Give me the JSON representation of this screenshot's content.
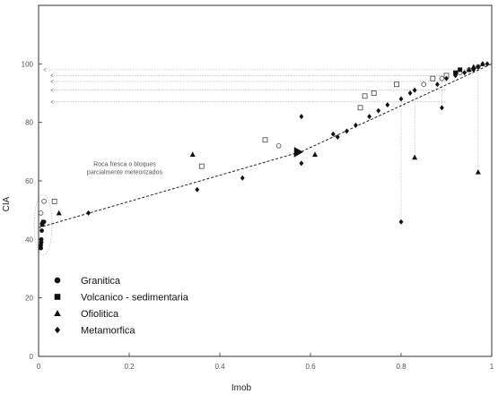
{
  "chart_data": {
    "type": "scatter",
    "title": "",
    "xlabel": "Imob",
    "ylabel": "CIA",
    "xlim": [
      0,
      1
    ],
    "ylim": [
      0,
      120
    ],
    "xticks": [
      0,
      0.2,
      0.4,
      0.6,
      0.8,
      1
    ],
    "xtick_labels": [
      "0",
      "0.2",
      "0.4",
      "0.6",
      "0.8",
      "1"
    ],
    "yticks": [
      0,
      20,
      40,
      60,
      80,
      100
    ],
    "ytick_labels": [
      "0",
      "20",
      "40",
      "60",
      "80",
      "100"
    ],
    "grid": false,
    "legend_position": "bottom-left",
    "annotation": "Roca fresca o bloques parcialmente meteorizados",
    "series": [
      {
        "name": "Granitica",
        "marker": "circle",
        "points": [
          [
            0.005,
            37
          ],
          [
            0.005,
            38
          ],
          [
            0.006,
            39
          ],
          [
            0.006,
            40
          ],
          [
            0.007,
            43
          ],
          [
            0.008,
            45
          ],
          [
            0.012,
            46
          ],
          [
            0.005,
            49
          ],
          [
            0.012,
            53
          ],
          [
            0.53,
            72
          ],
          [
            0.85,
            93
          ],
          [
            0.87,
            95
          ],
          [
            0.89,
            95
          ],
          [
            0.93,
            97
          ],
          [
            0.95,
            98
          ],
          [
            0.97,
            99
          ]
        ]
      },
      {
        "name": "Volcanico - sedimentaria",
        "marker": "square",
        "points": [
          [
            0.035,
            53
          ],
          [
            0.36,
            65
          ],
          [
            0.5,
            74
          ],
          [
            0.71,
            85
          ],
          [
            0.72,
            89
          ],
          [
            0.74,
            90
          ],
          [
            0.79,
            93
          ],
          [
            0.87,
            95
          ],
          [
            0.9,
            96
          ],
          [
            0.92,
            97
          ],
          [
            0.93,
            98
          ]
        ]
      },
      {
        "name": "Ofiolitica",
        "marker": "triangle",
        "points": [
          [
            0.008,
            46
          ],
          [
            0.045,
            49
          ],
          [
            0.34,
            69
          ],
          [
            0.61,
            69
          ],
          [
            0.83,
            68
          ],
          [
            0.97,
            63
          ],
          [
            0.95,
            98
          ],
          [
            0.96,
            99
          ],
          [
            0.98,
            100
          ]
        ]
      },
      {
        "name": "Metamorfica",
        "marker": "diamond",
        "points": [
          [
            0.11,
            49
          ],
          [
            0.35,
            57
          ],
          [
            0.45,
            61
          ],
          [
            0.58,
            66
          ],
          [
            0.58,
            82
          ],
          [
            0.65,
            76
          ],
          [
            0.66,
            75
          ],
          [
            0.68,
            77
          ],
          [
            0.7,
            79
          ],
          [
            0.73,
            82
          ],
          [
            0.75,
            84
          ],
          [
            0.77,
            86
          ],
          [
            0.8,
            88
          ],
          [
            0.8,
            46
          ],
          [
            0.82,
            90
          ],
          [
            0.83,
            91
          ],
          [
            0.88,
            93
          ],
          [
            0.89,
            85
          ],
          [
            0.9,
            95
          ],
          [
            0.92,
            96
          ],
          [
            0.94,
            97
          ],
          [
            0.96,
            98
          ],
          [
            0.97,
            99
          ],
          [
            0.98,
            100
          ],
          [
            0.99,
            100
          ]
        ]
      }
    ],
    "trendline": [
      [
        0,
        44
      ],
      [
        0.58,
        70
      ],
      [
        1,
        100
      ]
    ],
    "vertical_guides": [
      [
        0.8,
        46,
        88
      ],
      [
        0.83,
        68,
        91
      ],
      [
        0.89,
        85,
        95
      ],
      [
        0.97,
        63,
        99
      ]
    ],
    "horizontal_guides": [
      96,
      94,
      91,
      87
    ],
    "top_guide": 98,
    "ellipse_center": [
      0.01,
      45
    ],
    "large_marker": [
      0.57,
      70
    ]
  }
}
